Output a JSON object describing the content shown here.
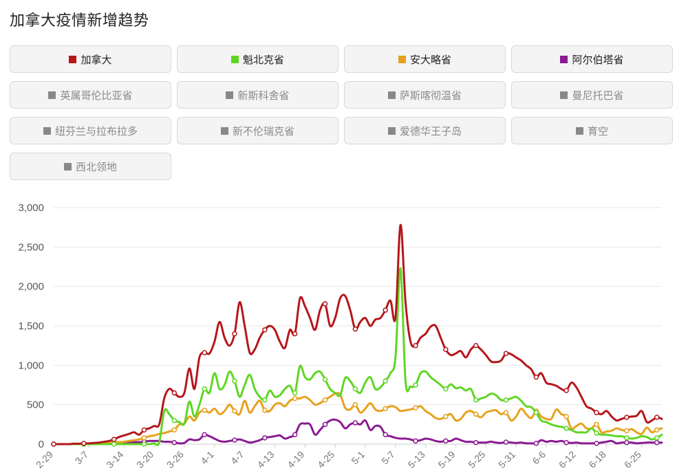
{
  "page": {
    "title": "加拿大疫情新增趋势"
  },
  "legend": {
    "items": [
      {
        "label": "加拿大",
        "color": "#b5161a",
        "active": true
      },
      {
        "label": "魁北克省",
        "color": "#5fd623",
        "active": true
      },
      {
        "label": "安大略省",
        "color": "#e6a11c",
        "active": true
      },
      {
        "label": "阿尔伯塔省",
        "color": "#8a1a93",
        "active": true
      },
      {
        "label": "英属哥伦比亚省",
        "color": "#888888",
        "active": false
      },
      {
        "label": "新斯科舍省",
        "color": "#888888",
        "active": false
      },
      {
        "label": "萨斯喀彻温省",
        "color": "#888888",
        "active": false
      },
      {
        "label": "曼尼托巴省",
        "color": "#888888",
        "active": false
      },
      {
        "label": "纽芬兰与拉布拉多",
        "color": "#888888",
        "active": false
      },
      {
        "label": "新不伦瑞克省",
        "color": "#888888",
        "active": false
      },
      {
        "label": "爱德华王子岛",
        "color": "#888888",
        "active": false
      },
      {
        "label": "育空",
        "color": "#888888",
        "active": false
      },
      {
        "label": "西北领地",
        "color": "#888888",
        "active": false
      }
    ]
  },
  "chart_data": {
    "type": "line",
    "ylim": [
      0,
      3000
    ],
    "yticks": [
      0,
      500,
      1000,
      1500,
      2000,
      2500,
      3000
    ],
    "ytick_labels": [
      "0",
      "500",
      "1,000",
      "1,500",
      "2,000",
      "2,500",
      "3,000"
    ],
    "xtick_labels": [
      "2-29",
      "3-7",
      "3-14",
      "3-20",
      "3-26",
      "4-1",
      "4-7",
      "4-13",
      "4-19",
      "4-25",
      "5-1",
      "5-7",
      "5-13",
      "5-19",
      "5-25",
      "5-31",
      "6-6",
      "6-12",
      "6-18",
      "6-25"
    ],
    "xtick_index": [
      0,
      7,
      14,
      20,
      26,
      32,
      38,
      44,
      50,
      56,
      62,
      68,
      74,
      80,
      86,
      92,
      98,
      104,
      110,
      117
    ],
    "grid": true,
    "series": [
      {
        "name": "加拿大",
        "color": "#b5161a",
        "values": [
          0,
          0,
          0,
          0,
          5,
          5,
          10,
          10,
          15,
          20,
          30,
          40,
          60,
          90,
          110,
          130,
          150,
          120,
          180,
          200,
          230,
          250,
          580,
          700,
          650,
          600,
          650,
          960,
          700,
          1100,
          1160,
          1150,
          1300,
          1550,
          1350,
          1250,
          1400,
          1800,
          1500,
          1160,
          1200,
          1350,
          1450,
          1500,
          1450,
          1300,
          1220,
          1450,
          1400,
          1850,
          1750,
          1600,
          1450,
          1700,
          1780,
          1500,
          1600,
          1850,
          1880,
          1700,
          1460,
          1550,
          1600,
          1500,
          1580,
          1600,
          1700,
          1820,
          1600,
          2780,
          1800,
          1300,
          1250,
          1350,
          1400,
          1490,
          1500,
          1350,
          1200,
          1130,
          1150,
          1180,
          1100,
          1200,
          1250,
          1200,
          1130,
          1050,
          1040,
          1060,
          1150,
          1140,
          1100,
          1060,
          1000,
          950,
          850,
          900,
          780,
          760,
          740,
          700,
          680,
          780,
          720,
          600,
          480,
          450,
          400,
          380,
          420,
          350,
          300,
          320,
          340,
          350,
          360,
          420,
          280,
          300,
          340,
          320
        ]
      },
      {
        "name": "魁北克省",
        "color": "#5fd623",
        "values": [
          0,
          0,
          0,
          0,
          0,
          0,
          0,
          0,
          0,
          0,
          0,
          0,
          0,
          0,
          0,
          0,
          0,
          0,
          0,
          0,
          10,
          20,
          420,
          380,
          300,
          280,
          260,
          540,
          350,
          500,
          700,
          650,
          900,
          700,
          750,
          920,
          800,
          600,
          750,
          880,
          700,
          600,
          560,
          680,
          600,
          620,
          700,
          740,
          650,
          990,
          850,
          820,
          900,
          920,
          820,
          700,
          650,
          620,
          840,
          800,
          700,
          650,
          780,
          850,
          700,
          720,
          800,
          900,
          1100,
          2230,
          800,
          730,
          750,
          900,
          920,
          850,
          800,
          750,
          700,
          760,
          710,
          720,
          680,
          700,
          560,
          580,
          600,
          640,
          620,
          560,
          560,
          580,
          600,
          550,
          480,
          470,
          400,
          300,
          280,
          250,
          230,
          220,
          200,
          180,
          150,
          150,
          150,
          200,
          140,
          120,
          120,
          110,
          100,
          100,
          80,
          70,
          80,
          100,
          90,
          60,
          80,
          120
        ]
      },
      {
        "name": "安大略省",
        "color": "#e6a11c",
        "values": [
          0,
          0,
          0,
          0,
          0,
          0,
          0,
          0,
          0,
          0,
          10,
          15,
          20,
          25,
          30,
          40,
          50,
          60,
          80,
          100,
          110,
          130,
          140,
          160,
          180,
          250,
          260,
          350,
          300,
          400,
          430,
          400,
          450,
          380,
          420,
          500,
          420,
          380,
          550,
          400,
          480,
          550,
          430,
          420,
          500,
          520,
          480,
          550,
          580,
          580,
          600,
          560,
          500,
          520,
          560,
          600,
          640,
          630,
          460,
          440,
          500,
          400,
          450,
          520,
          440,
          420,
          450,
          480,
          470,
          420,
          430,
          440,
          460,
          480,
          420,
          380,
          330,
          320,
          350,
          380,
          300,
          320,
          400,
          420,
          380,
          340,
          400,
          420,
          430,
          380,
          400,
          300,
          350,
          450,
          380,
          330,
          420,
          350,
          320,
          320,
          440,
          380,
          350,
          200,
          230,
          260,
          200,
          200,
          250,
          150,
          160,
          170,
          200,
          180,
          170,
          190,
          150,
          130,
          210,
          150,
          180,
          200
        ]
      },
      {
        "name": "阿尔伯塔省",
        "color": "#8a1a93",
        "values": [
          0,
          0,
          0,
          0,
          0,
          0,
          0,
          0,
          0,
          0,
          5,
          5,
          5,
          10,
          15,
          20,
          25,
          25,
          30,
          40,
          40,
          40,
          30,
          30,
          20,
          10,
          15,
          60,
          50,
          60,
          120,
          100,
          70,
          40,
          30,
          40,
          50,
          60,
          40,
          20,
          30,
          50,
          80,
          90,
          100,
          110,
          70,
          90,
          120,
          250,
          260,
          250,
          120,
          180,
          250,
          300,
          310,
          280,
          200,
          250,
          270,
          250,
          300,
          180,
          230,
          220,
          120,
          100,
          80,
          70,
          70,
          60,
          40,
          50,
          70,
          60,
          40,
          30,
          40,
          40,
          70,
          50,
          30,
          30,
          20,
          20,
          20,
          30,
          20,
          15,
          25,
          20,
          15,
          20,
          10,
          10,
          10,
          50,
          30,
          40,
          30,
          40,
          20,
          15,
          20,
          10,
          10,
          10,
          10,
          20,
          30,
          40,
          10,
          20,
          20,
          20,
          10,
          15,
          20,
          20,
          20,
          20
        ]
      }
    ]
  }
}
